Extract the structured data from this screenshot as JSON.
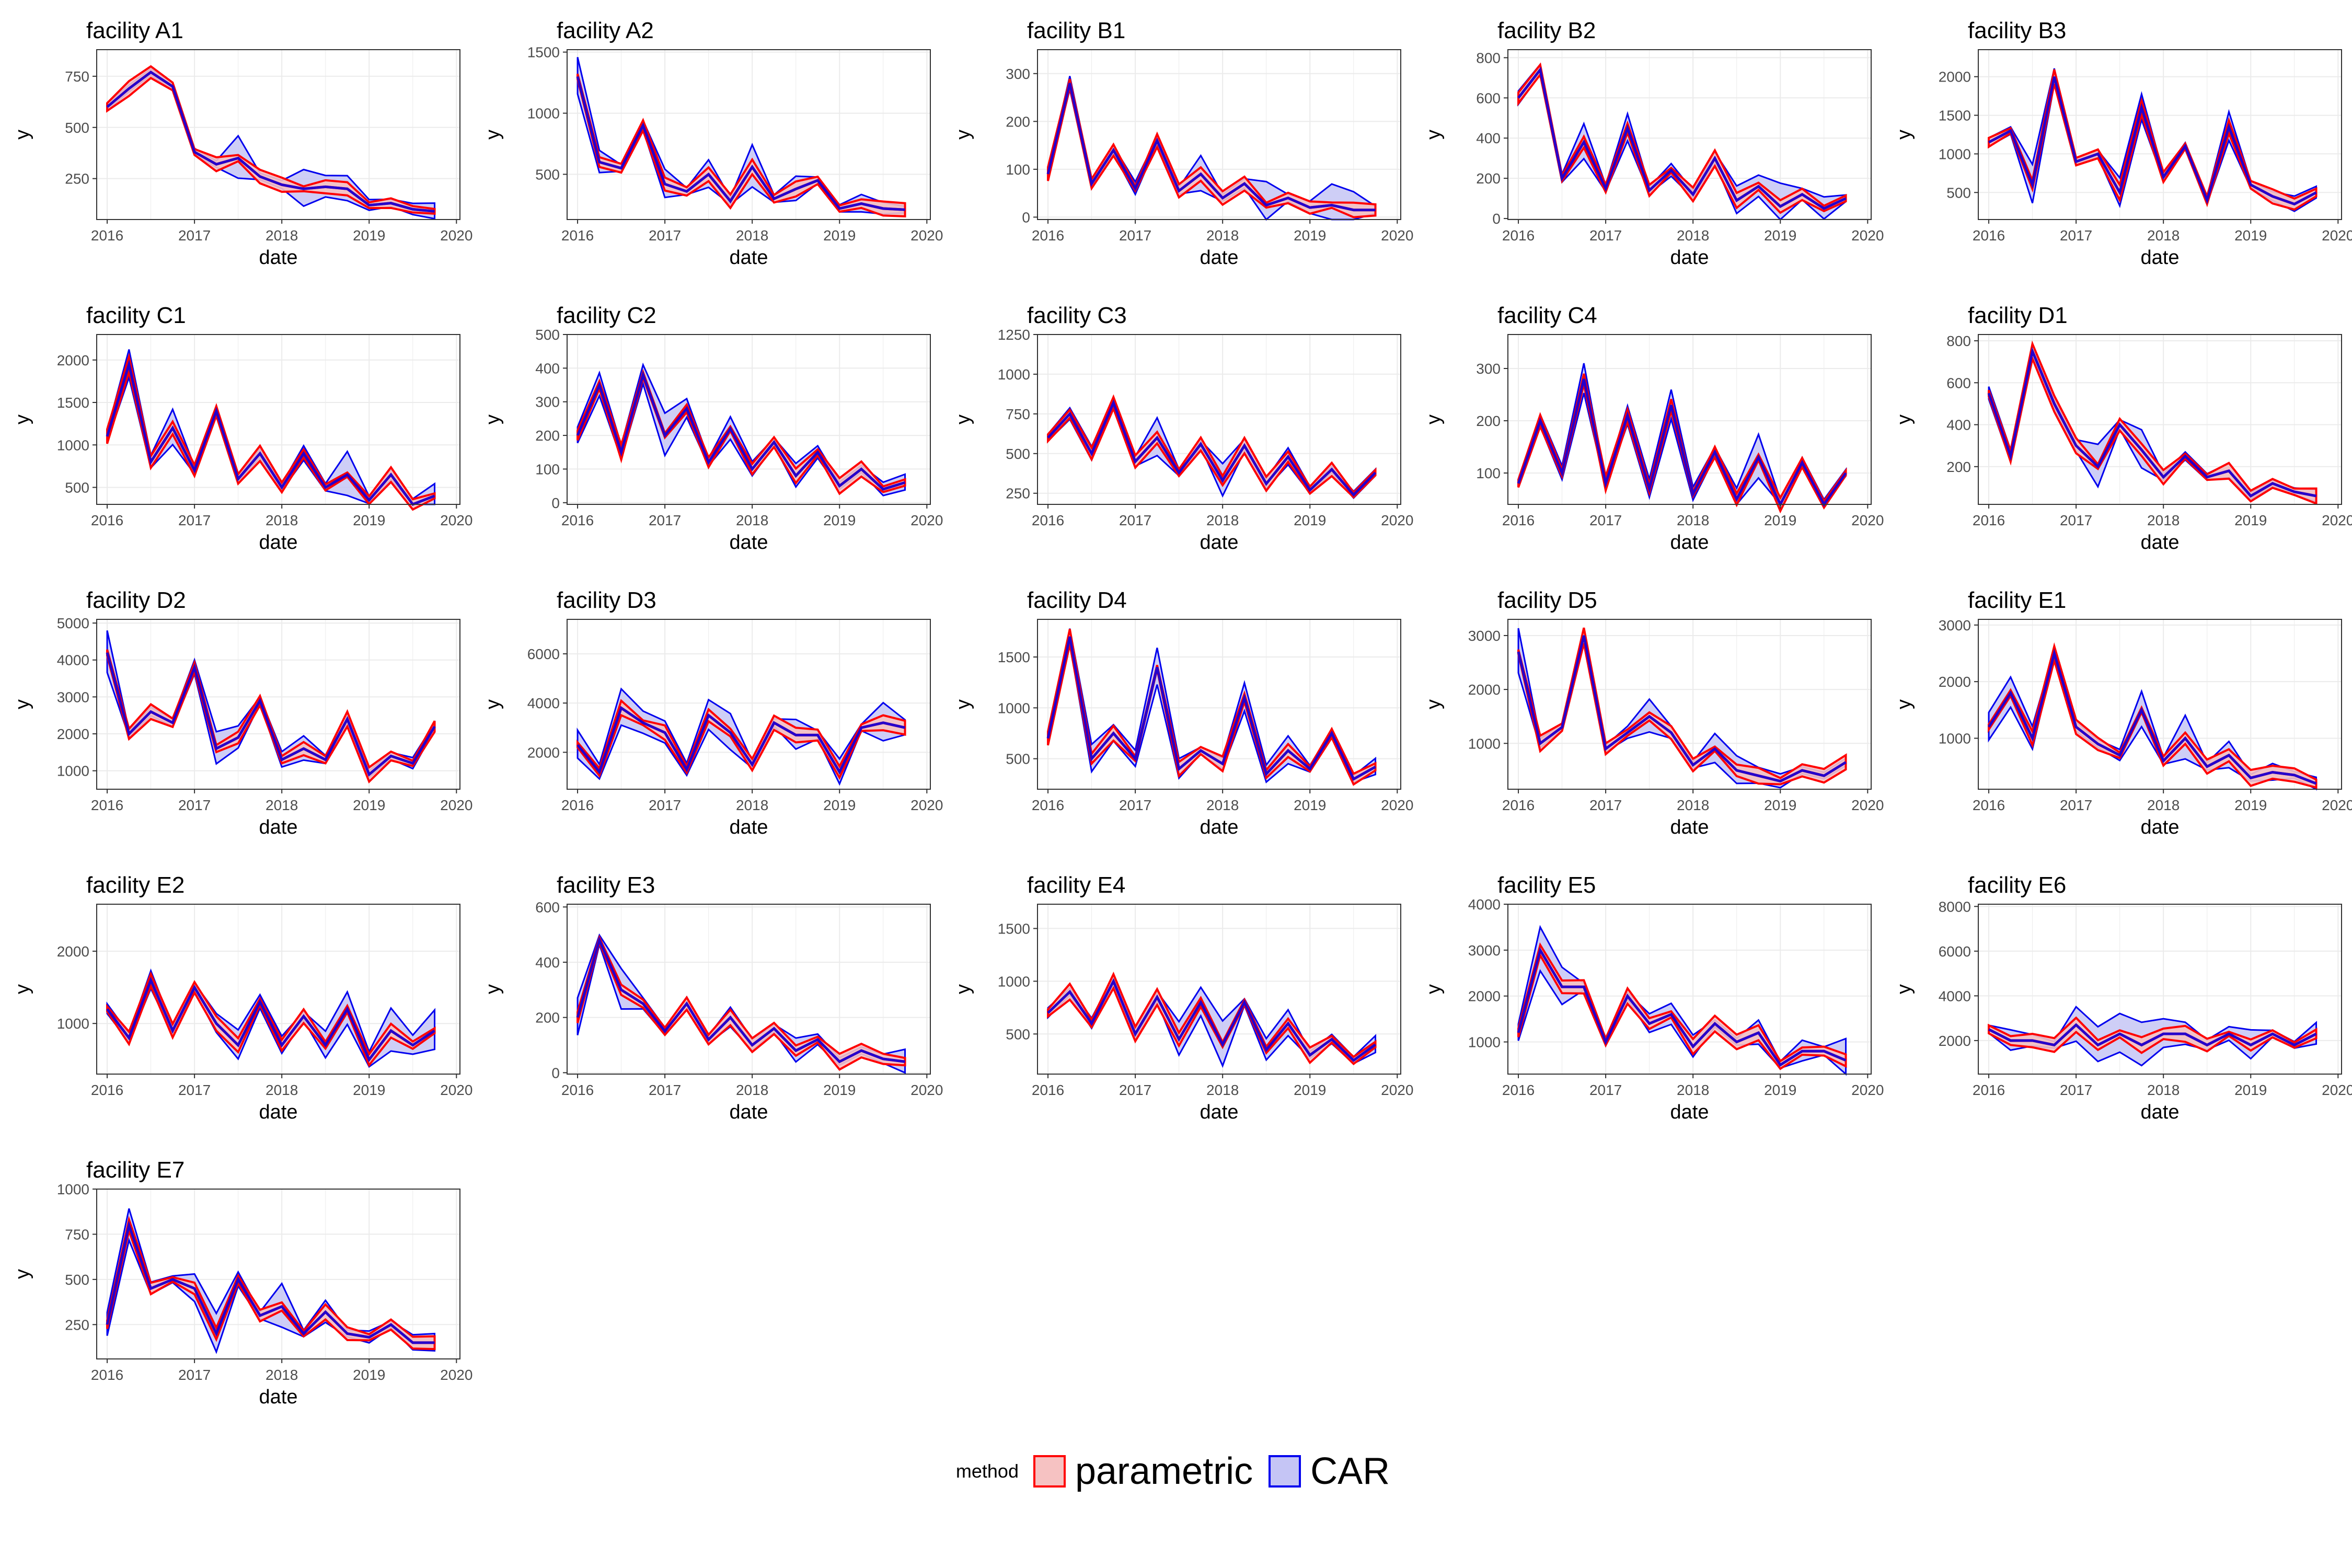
{
  "legend": {
    "title": "method",
    "items": [
      {
        "label": "parametric",
        "fill": "#f6c2c2",
        "line": "#ff0000"
      },
      {
        "label": "CAR",
        "fill": "#c5c5f5",
        "line": "#0000ee"
      }
    ]
  },
  "colors": {
    "parametric": "#ff0000",
    "car": "#0000ee",
    "grid": "#ebebeb",
    "panel_border": "#333333"
  },
  "chart_data": {
    "type": "line",
    "note_x": "quarterly points from 2016 Q1 to 2019 Q4",
    "xlabel": "date",
    "ylabel": "y",
    "x_ticks": [
      "2016",
      "2017",
      "2018",
      "2019",
      "2020"
    ],
    "x_range": [
      2015.88,
      2020.04
    ],
    "x_dates": [
      "2016-01",
      "2016-04",
      "2016-07",
      "2016-10",
      "2017-01",
      "2017-04",
      "2017-07",
      "2017-10",
      "2018-01",
      "2018-04",
      "2018-07",
      "2018-10",
      "2019-01",
      "2019-04",
      "2019-07",
      "2019-10"
    ],
    "series_names": [
      "parametric",
      "CAR"
    ],
    "panels": [
      {
        "title": "facility A1",
        "ylim": [
          50,
          880
        ],
        "yticks": [
          250,
          500,
          750
        ],
        "values": [
          600,
          690,
          770,
          700,
          380,
          320,
          350,
          260,
          220,
          200,
          210,
          200,
          120,
          130,
          100,
          90
        ]
      },
      {
        "title": "facility A2",
        "ylim": [
          130,
          1520
        ],
        "yticks": [
          500,
          1000,
          1500
        ],
        "values": [
          1300,
          600,
          550,
          900,
          420,
          360,
          500,
          280,
          560,
          300,
          380,
          450,
          220,
          260,
          220,
          210
        ]
      },
      {
        "title": "facility B1",
        "ylim": [
          -5,
          350
        ],
        "yticks": [
          0,
          100,
          200,
          300
        ],
        "values": [
          90,
          280,
          70,
          140,
          60,
          160,
          55,
          90,
          40,
          70,
          25,
          40,
          20,
          25,
          15,
          15
        ]
      },
      {
        "title": "facility B2",
        "ylim": [
          -5,
          840
        ],
        "yticks": [
          0,
          200,
          400,
          600,
          800
        ],
        "values": [
          600,
          740,
          200,
          380,
          150,
          450,
          140,
          240,
          120,
          300,
          90,
          160,
          60,
          120,
          50,
          100
        ]
      },
      {
        "title": "facility B3",
        "ylim": [
          150,
          2350
        ],
        "yticks": [
          500,
          1000,
          1500,
          2000
        ],
        "values": [
          1150,
          1300,
          600,
          2000,
          900,
          1000,
          500,
          1600,
          700,
          1100,
          400,
          1350,
          600,
          450,
          350,
          500
        ]
      },
      {
        "title": "facility C1",
        "ylim": [
          300,
          2300
        ],
        "yticks": [
          500,
          1000,
          1500,
          2000
        ],
        "values": [
          1100,
          1950,
          800,
          1200,
          700,
          1400,
          600,
          900,
          500,
          900,
          500,
          650,
          350,
          650,
          300,
          400
        ]
      },
      {
        "title": "facility C2",
        "ylim": [
          -5,
          500
        ],
        "yticks": [
          0,
          100,
          200,
          300,
          400,
          500
        ],
        "values": [
          200,
          350,
          150,
          380,
          200,
          280,
          120,
          220,
          100,
          180,
          80,
          150,
          50,
          100,
          40,
          60
        ]
      },
      {
        "title": "facility C3",
        "ylim": [
          180,
          1250
        ],
        "yticks": [
          250,
          500,
          750,
          1000,
          1250
        ],
        "values": [
          600,
          750,
          500,
          820,
          450,
          600,
          380,
          560,
          330,
          550,
          310,
          480,
          270,
          400,
          240,
          380
        ]
      },
      {
        "title": "facility C4",
        "ylim": [
          40,
          365
        ],
        "yticks": [
          100,
          200,
          300
        ],
        "values": [
          80,
          200,
          100,
          280,
          80,
          210,
          70,
          230,
          60,
          140,
          50,
          130,
          40,
          120,
          40,
          100
        ]
      },
      {
        "title": "facility D1",
        "ylim": [
          20,
          830
        ],
        "yticks": [
          200,
          400,
          600,
          800
        ],
        "values": [
          550,
          250,
          750,
          500,
          300,
          200,
          400,
          280,
          150,
          250,
          150,
          180,
          60,
          120,
          80,
          60
        ]
      },
      {
        "title": "facility D2",
        "ylim": [
          500,
          5100
        ],
        "yticks": [
          1000,
          2000,
          3000,
          4000,
          5000
        ],
        "values": [
          4200,
          2000,
          2600,
          2300,
          3800,
          1600,
          1900,
          2900,
          1300,
          1600,
          1300,
          2400,
          900,
          1400,
          1200,
          2200
        ]
      },
      {
        "title": "facility D3",
        "ylim": [
          500,
          7400
        ],
        "yticks": [
          2000,
          4000,
          6000
        ],
        "values": [
          2300,
          1200,
          3800,
          3200,
          2800,
          1300,
          3500,
          2800,
          1500,
          3200,
          2700,
          2700,
          1200,
          3000,
          3200,
          3000
        ]
      },
      {
        "title": "facility D4",
        "ylim": [
          200,
          1870
        ],
        "yticks": [
          500,
          1000,
          1500
        ],
        "values": [
          700,
          1700,
          500,
          750,
          500,
          1400,
          400,
          580,
          450,
          1100,
          350,
          580,
          400,
          750,
          300,
          420
        ]
      },
      {
        "title": "facility D5",
        "ylim": [
          150,
          3300
        ],
        "yticks": [
          1000,
          2000,
          3000
        ],
        "values": [
          2700,
          1000,
          1300,
          3000,
          900,
          1200,
          1500,
          1200,
          600,
          900,
          500,
          400,
          300,
          500,
          400,
          650
        ]
      },
      {
        "title": "facility E1",
        "ylim": [
          100,
          3100
        ],
        "yticks": [
          1000,
          2000,
          3000
        ],
        "values": [
          1200,
          1800,
          1000,
          2500,
          1200,
          900,
          700,
          1500,
          600,
          1000,
          500,
          700,
          300,
          400,
          350,
          200
        ]
      },
      {
        "title": "facility E2",
        "ylim": [
          300,
          2650
        ],
        "yticks": [
          1000,
          2000
        ],
        "values": [
          1200,
          800,
          1600,
          900,
          1500,
          1000,
          700,
          1300,
          700,
          1100,
          700,
          1200,
          500,
          900,
          700,
          900
        ]
      },
      {
        "title": "facility E3",
        "ylim": [
          -5,
          610
        ],
        "yticks": [
          0,
          200,
          400,
          600
        ],
        "values": [
          200,
          480,
          300,
          250,
          150,
          250,
          120,
          200,
          100,
          160,
          80,
          120,
          40,
          80,
          50,
          40
        ]
      },
      {
        "title": "facility E4",
        "ylim": [
          120,
          1730
        ],
        "yticks": [
          500,
          1000,
          1500
        ],
        "values": [
          700,
          900,
          600,
          1000,
          500,
          850,
          450,
          800,
          400,
          800,
          350,
          600,
          300,
          450,
          250,
          400
        ]
      },
      {
        "title": "facility E5",
        "ylim": [
          300,
          4000
        ],
        "yticks": [
          1000,
          2000,
          3000,
          4000
        ],
        "values": [
          1200,
          3000,
          2200,
          2200,
          1000,
          2000,
          1400,
          1600,
          900,
          1400,
          1000,
          1200,
          500,
          800,
          800,
          600
        ]
      },
      {
        "title": "facility E6",
        "ylim": [
          500,
          8100
        ],
        "yticks": [
          2000,
          4000,
          6000,
          8000
        ],
        "values": [
          2500,
          2000,
          2000,
          1800,
          2700,
          1800,
          2300,
          1800,
          2300,
          2300,
          1800,
          2300,
          1800,
          2300,
          1800,
          2300
        ]
      },
      {
        "title": "facility E7",
        "ylim": [
          60,
          1000
        ],
        "yticks": [
          250,
          500,
          750,
          1000
        ],
        "values": [
          250,
          800,
          450,
          500,
          450,
          200,
          500,
          300,
          350,
          200,
          320,
          200,
          180,
          250,
          150,
          150
        ]
      }
    ]
  }
}
